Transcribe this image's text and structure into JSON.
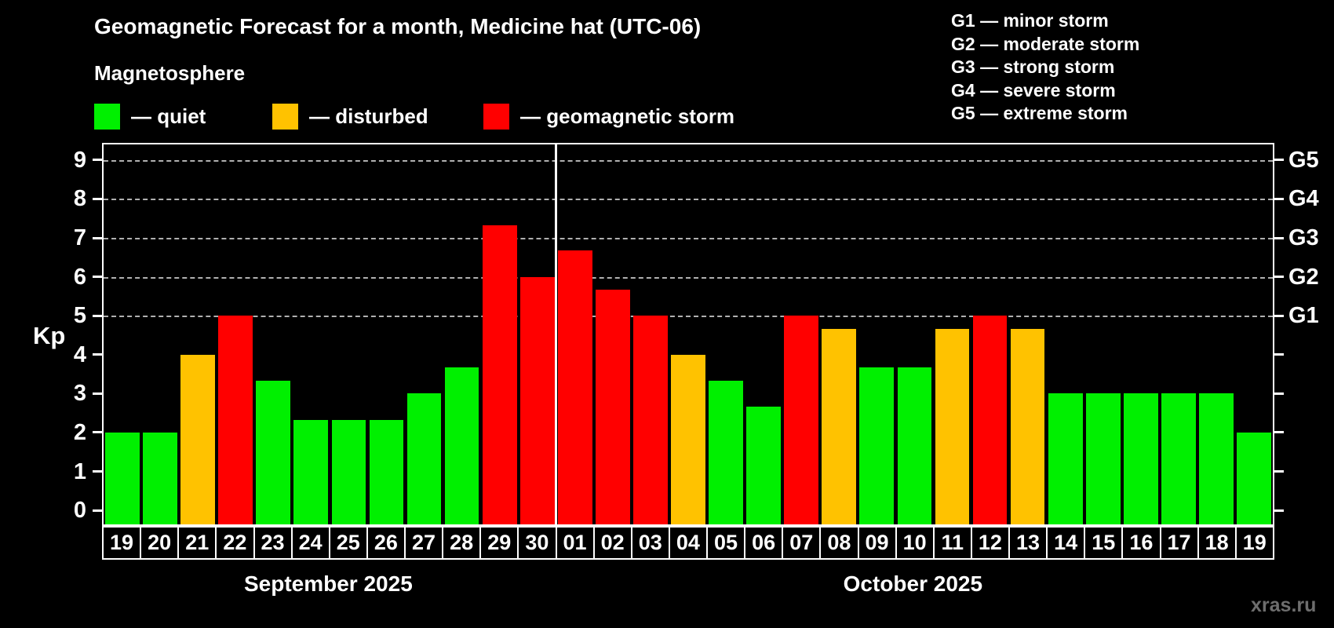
{
  "header": {
    "title": "Geomagnetic Forecast for a month, Medicine hat (UTC-06)",
    "subtitle": "Magnetosphere"
  },
  "legend": {
    "items": [
      {
        "key": "quiet",
        "label": "— quiet"
      },
      {
        "key": "disturbed",
        "label": "— disturbed"
      },
      {
        "key": "storm",
        "label": "— geomagnetic storm"
      }
    ]
  },
  "storm_scale": {
    "items": [
      "G1 — minor storm",
      "G2 — moderate storm",
      "G3 — strong storm",
      "G4 — severe storm",
      "G5 — extreme storm"
    ]
  },
  "colors": {
    "quiet": "#00f000",
    "disturbed": "#ffc200",
    "storm": "#ff0000",
    "axis": "#ffffff",
    "grid": "#b0b0b0",
    "background": "#000000",
    "watermark": "#6e6e6e"
  },
  "watermark": "xras.ru",
  "chart_data": {
    "type": "bar",
    "title": "Geomagnetic Forecast for a month, Medicine hat (UTC-06)",
    "ylabel": "Kp",
    "xlabel": "",
    "ylim": [
      -0.36,
      9.4
    ],
    "y_ticks": [
      0,
      1,
      2,
      3,
      4,
      5,
      6,
      7,
      8,
      9
    ],
    "gridlines_at": [
      5,
      6,
      7,
      8,
      9
    ],
    "grid": "horizontal dashed lines only at Kp 5-9 (G1-G5 levels)",
    "legend_position": "top-left",
    "right_axis_labels": [
      {
        "kp": 5,
        "text": "G1"
      },
      {
        "kp": 6,
        "text": "G2"
      },
      {
        "kp": 7,
        "text": "G3"
      },
      {
        "kp": 8,
        "text": "G4"
      },
      {
        "kp": 9,
        "text": "G5"
      }
    ],
    "months": [
      {
        "label": "September 2025",
        "days": 12
      },
      {
        "label": "October 2025",
        "days": 19
      }
    ],
    "categories": [
      "19",
      "20",
      "21",
      "22",
      "23",
      "24",
      "25",
      "26",
      "27",
      "28",
      "29",
      "30",
      "01",
      "02",
      "03",
      "04",
      "05",
      "06",
      "07",
      "08",
      "09",
      "10",
      "11",
      "12",
      "13",
      "14",
      "15",
      "16",
      "17",
      "18",
      "19"
    ],
    "values": [
      2,
      2,
      4,
      5,
      3.33,
      2.33,
      2.33,
      2.33,
      3,
      3.67,
      7.33,
      6,
      6.67,
      5.67,
      5,
      4,
      3.33,
      2.67,
      5,
      4.67,
      3.67,
      3.67,
      4.67,
      5,
      4.67,
      3,
      3,
      3,
      3,
      3,
      2
    ],
    "statuses": [
      "quiet",
      "quiet",
      "disturbed",
      "storm",
      "quiet",
      "quiet",
      "quiet",
      "quiet",
      "quiet",
      "quiet",
      "storm",
      "storm",
      "storm",
      "storm",
      "storm",
      "disturbed",
      "quiet",
      "quiet",
      "storm",
      "disturbed",
      "quiet",
      "quiet",
      "disturbed",
      "storm",
      "disturbed",
      "quiet",
      "quiet",
      "quiet",
      "quiet",
      "quiet",
      "quiet"
    ]
  }
}
